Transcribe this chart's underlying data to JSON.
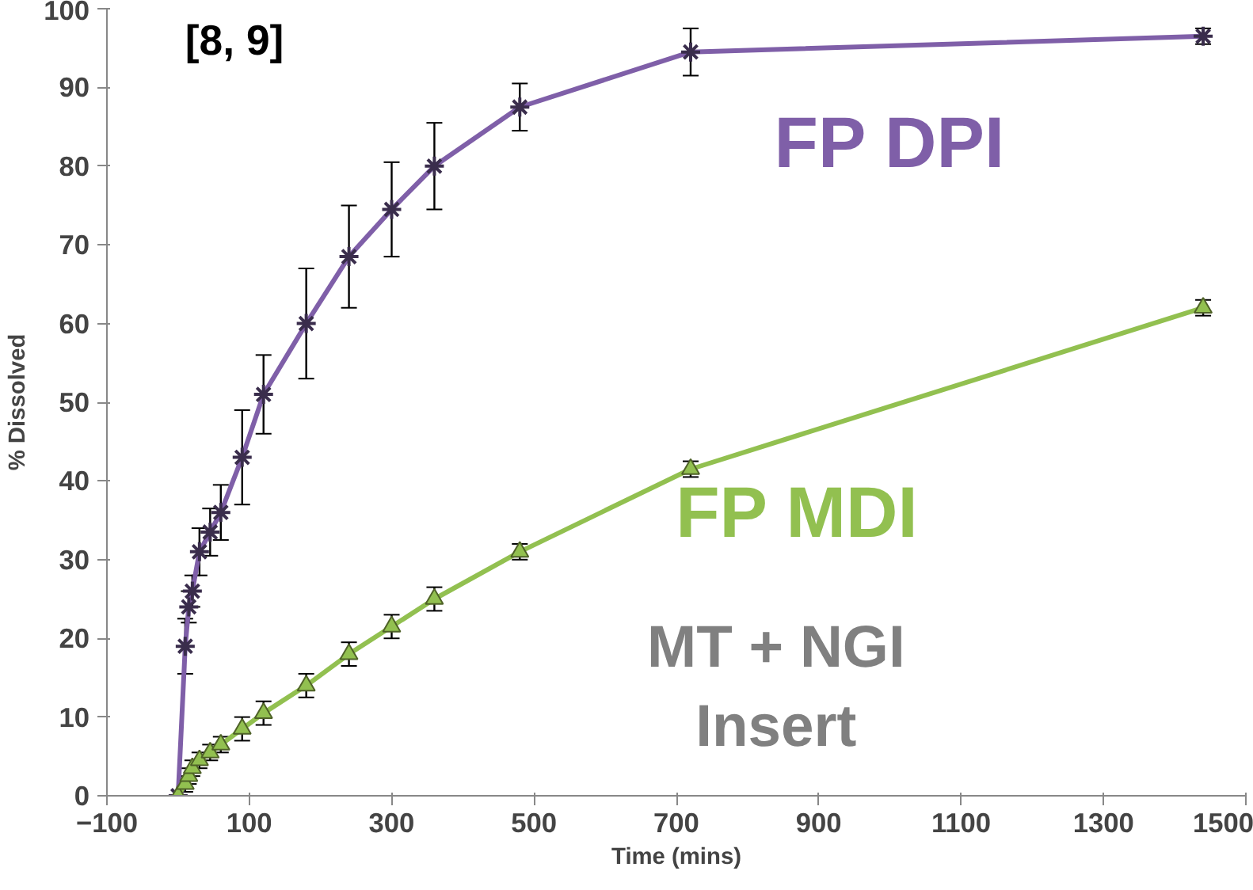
{
  "chart_data": {
    "type": "line",
    "xlabel": "Time (mins)",
    "ylabel": "% Dissolved",
    "xlim": [
      -100,
      1500
    ],
    "ylim": [
      0,
      100
    ],
    "xticks": [
      -100,
      100,
      300,
      500,
      700,
      900,
      1100,
      1300,
      1500
    ],
    "yticks": [
      0,
      10,
      20,
      30,
      40,
      50,
      60,
      70,
      80,
      90,
      100
    ],
    "grid": false,
    "legend": false,
    "annotations": [
      "[8, 9]",
      "MT + NGI",
      "Insert"
    ],
    "series": [
      {
        "name": "FP DPI",
        "color": "#7f5fa8",
        "marker": "cross",
        "x": [
          0,
          10,
          15,
          20,
          30,
          45,
          60,
          90,
          120,
          180,
          240,
          300,
          360,
          480,
          720,
          1440
        ],
        "values": [
          0,
          19,
          24,
          26,
          31,
          33.5,
          36,
          43,
          51,
          60,
          68.5,
          74.5,
          80,
          87.5,
          94.5,
          96.5
        ],
        "errors": [
          null,
          3.5,
          2,
          2,
          3,
          3,
          3.5,
          6,
          5,
          7,
          6.5,
          6,
          5.5,
          3,
          3,
          1
        ]
      },
      {
        "name": "FP MDI",
        "color": "#92c050",
        "marker": "triangle",
        "x": [
          0,
          10,
          15,
          20,
          30,
          45,
          60,
          90,
          120,
          180,
          240,
          300,
          360,
          480,
          720,
          1440
        ],
        "values": [
          0,
          1.5,
          2.5,
          3.5,
          4.5,
          5.5,
          6.5,
          8.5,
          10.5,
          14,
          18,
          21.5,
          25,
          31,
          41.5,
          62
        ],
        "errors": [
          null,
          1,
          1,
          1,
          1,
          1,
          1,
          1.5,
          1.5,
          1.5,
          1.5,
          1.5,
          1.5,
          1,
          1,
          1
        ]
      }
    ]
  }
}
